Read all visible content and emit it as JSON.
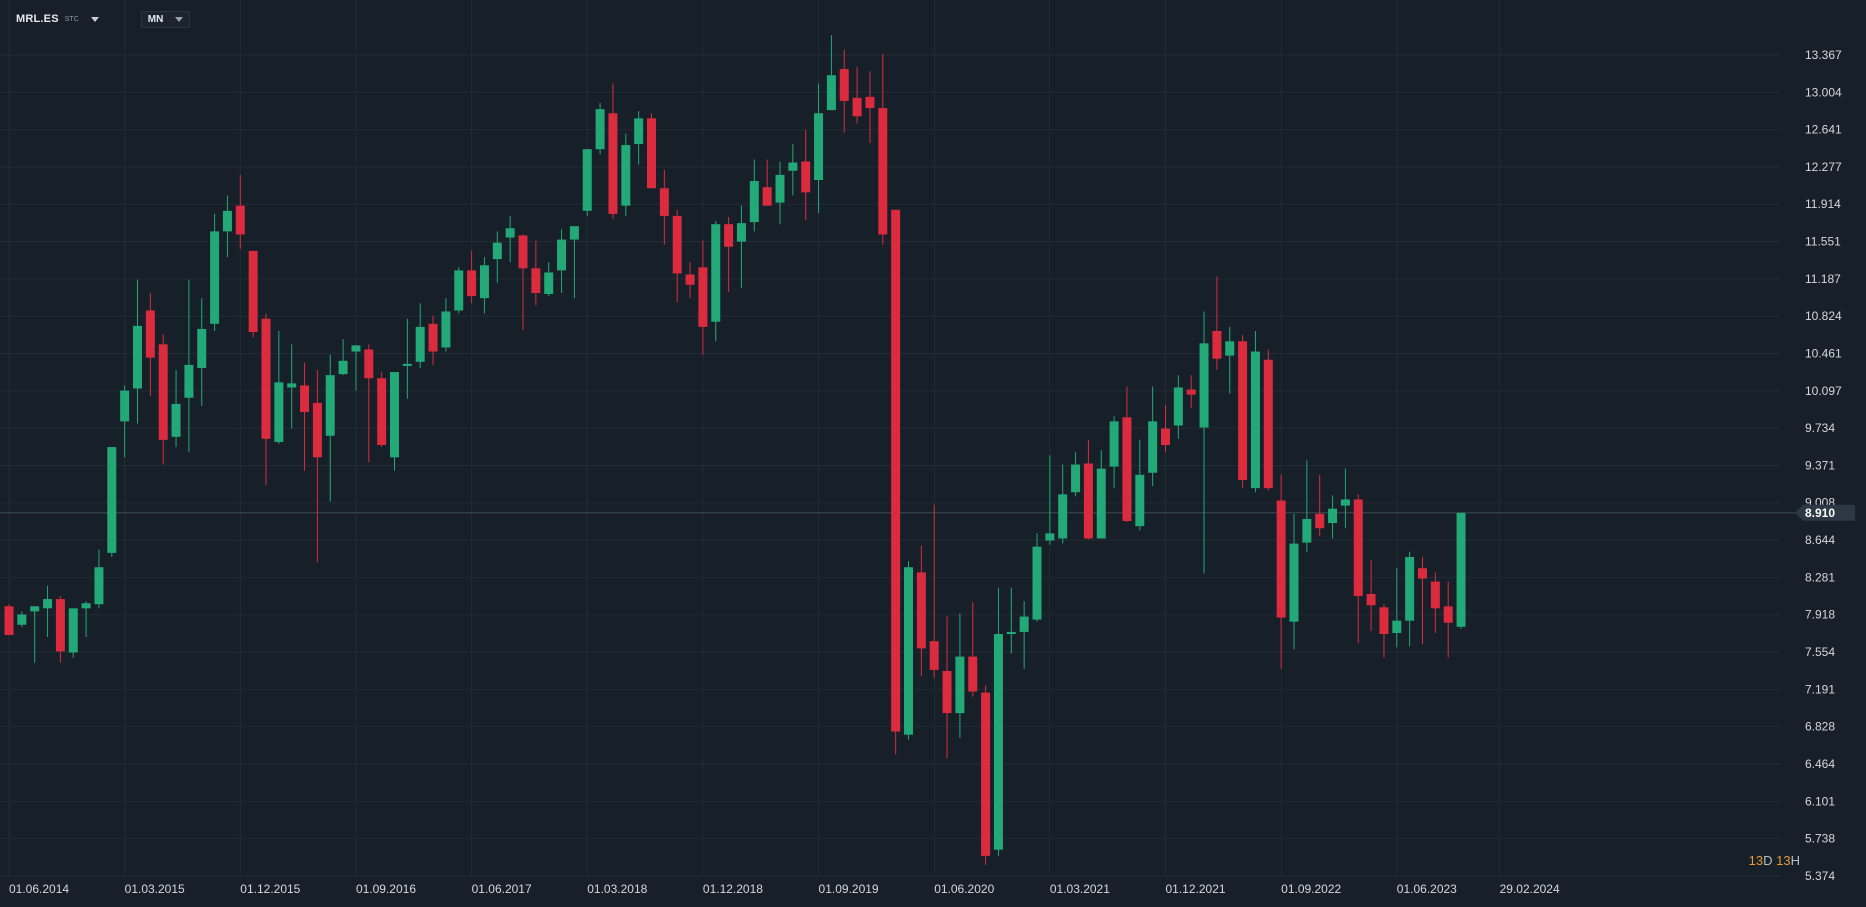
{
  "header": {
    "symbol": "MRL.ES",
    "symbol_suffix": "STC",
    "timeframe": "MN"
  },
  "countdown": {
    "days": "13",
    "d_label": "D",
    "hours": "13",
    "h_label": "H"
  },
  "colors": {
    "background": "#171f28",
    "grid": "#222c36",
    "up": "#23a878",
    "down": "#db2b3e",
    "axis_text": "#d4d8de",
    "price_line": "#3a4a52",
    "price_tag": "#2c3945"
  },
  "icons": [
    "caret-down-icon",
    "caret-down-icon"
  ],
  "chart_data": {
    "type": "candlestick",
    "title": "",
    "y_ticks": [
      "13.367",
      "13.004",
      "12.641",
      "12.277",
      "11.914",
      "11.551",
      "11.187",
      "10.824",
      "10.461",
      "10.097",
      "9.734",
      "9.371",
      "9.008",
      "8.644",
      "8.281",
      "7.918",
      "7.554",
      "7.191",
      "6.828",
      "6.464",
      "6.101",
      "5.738",
      "5.374"
    ],
    "x_ticks": [
      "01.06.2014",
      "01.03.2015",
      "01.12.2015",
      "01.09.2016",
      "01.06.2017",
      "01.03.2018",
      "01.12.2018",
      "01.09.2019",
      "01.06.2020",
      "01.03.2021",
      "01.12.2021",
      "01.09.2022",
      "01.06.2023",
      "29.02.2024"
    ],
    "ylim": [
      5.374,
      13.367
    ],
    "x_start": "2014-06",
    "current_price": "8.910",
    "grid": true,
    "candles": [
      {
        "d": "2014-06",
        "o": 8.0,
        "h": 8.02,
        "l": 7.72,
        "c": 7.72
      },
      {
        "d": "2014-07",
        "o": 7.82,
        "h": 7.95,
        "l": 7.8,
        "c": 7.92
      },
      {
        "d": "2014-08",
        "o": 7.95,
        "h": 8.0,
        "l": 7.45,
        "c": 8.0
      },
      {
        "d": "2014-09",
        "o": 7.98,
        "h": 8.2,
        "l": 7.7,
        "c": 8.07
      },
      {
        "d": "2014-10",
        "o": 8.07,
        "h": 8.1,
        "l": 7.45,
        "c": 7.56
      },
      {
        "d": "2014-11",
        "o": 7.55,
        "h": 7.98,
        "l": 7.5,
        "c": 7.98
      },
      {
        "d": "2014-12",
        "o": 7.98,
        "h": 8.05,
        "l": 7.7,
        "c": 8.03
      },
      {
        "d": "2015-01",
        "o": 8.02,
        "h": 8.55,
        "l": 7.98,
        "c": 8.38
      },
      {
        "d": "2015-02",
        "o": 8.52,
        "h": 9.55,
        "l": 8.48,
        "c": 9.55
      },
      {
        "d": "2015-03",
        "o": 9.8,
        "h": 10.15,
        "l": 9.45,
        "c": 10.1
      },
      {
        "d": "2015-04",
        "o": 10.12,
        "h": 11.18,
        "l": 9.78,
        "c": 10.73
      },
      {
        "d": "2015-05",
        "o": 10.88,
        "h": 11.05,
        "l": 10.05,
        "c": 10.42
      },
      {
        "d": "2015-06",
        "o": 10.55,
        "h": 10.65,
        "l": 9.38,
        "c": 9.62
      },
      {
        "d": "2015-07",
        "o": 9.65,
        "h": 10.3,
        "l": 9.55,
        "c": 9.97
      },
      {
        "d": "2015-08",
        "o": 10.03,
        "h": 11.18,
        "l": 9.5,
        "c": 10.35
      },
      {
        "d": "2015-09",
        "o": 10.32,
        "h": 11.0,
        "l": 9.95,
        "c": 10.7
      },
      {
        "d": "2015-10",
        "o": 10.75,
        "h": 11.82,
        "l": 10.68,
        "c": 11.65
      },
      {
        "d": "2015-11",
        "o": 11.65,
        "h": 12.0,
        "l": 11.4,
        "c": 11.85
      },
      {
        "d": "2015-12",
        "o": 11.9,
        "h": 12.2,
        "l": 11.48,
        "c": 11.62
      },
      {
        "d": "2016-01",
        "o": 11.46,
        "h": 11.46,
        "l": 10.62,
        "c": 10.67
      },
      {
        "d": "2016-02",
        "o": 10.8,
        "h": 10.85,
        "l": 9.18,
        "c": 9.63
      },
      {
        "d": "2016-03",
        "o": 9.6,
        "h": 10.68,
        "l": 9.58,
        "c": 10.18
      },
      {
        "d": "2016-04",
        "o": 10.13,
        "h": 10.55,
        "l": 9.73,
        "c": 10.17
      },
      {
        "d": "2016-05",
        "o": 10.15,
        "h": 10.37,
        "l": 9.32,
        "c": 9.89
      },
      {
        "d": "2016-06",
        "o": 9.98,
        "h": 10.3,
        "l": 8.43,
        "c": 9.45
      },
      {
        "d": "2016-07",
        "o": 9.66,
        "h": 10.45,
        "l": 9.02,
        "c": 10.25
      },
      {
        "d": "2016-08",
        "o": 10.26,
        "h": 10.6,
        "l": 10.25,
        "c": 10.39
      },
      {
        "d": "2016-09",
        "o": 10.48,
        "h": 10.54,
        "l": 10.1,
        "c": 10.54
      },
      {
        "d": "2016-10",
        "o": 10.5,
        "h": 10.55,
        "l": 9.4,
        "c": 10.22
      },
      {
        "d": "2016-11",
        "o": 10.22,
        "h": 10.28,
        "l": 9.55,
        "c": 9.57
      },
      {
        "d": "2016-12",
        "o": 9.45,
        "h": 10.27,
        "l": 9.32,
        "c": 10.28
      },
      {
        "d": "2017-01",
        "o": 10.34,
        "h": 10.8,
        "l": 10.02,
        "c": 10.36
      },
      {
        "d": "2017-02",
        "o": 10.38,
        "h": 10.95,
        "l": 10.32,
        "c": 10.72
      },
      {
        "d": "2017-03",
        "o": 10.75,
        "h": 10.83,
        "l": 10.35,
        "c": 10.48
      },
      {
        "d": "2017-04",
        "o": 10.52,
        "h": 11.0,
        "l": 10.48,
        "c": 10.87
      },
      {
        "d": "2017-05",
        "o": 10.88,
        "h": 11.3,
        "l": 10.85,
        "c": 11.27
      },
      {
        "d": "2017-06",
        "o": 11.27,
        "h": 11.46,
        "l": 10.95,
        "c": 11.02
      },
      {
        "d": "2017-07",
        "o": 11.0,
        "h": 11.4,
        "l": 10.85,
        "c": 11.32
      },
      {
        "d": "2017-08",
        "o": 11.38,
        "h": 11.65,
        "l": 11.15,
        "c": 11.54
      },
      {
        "d": "2017-09",
        "o": 11.59,
        "h": 11.8,
        "l": 11.35,
        "c": 11.68
      },
      {
        "d": "2017-10",
        "o": 11.61,
        "h": 11.62,
        "l": 10.69,
        "c": 11.29
      },
      {
        "d": "2017-11",
        "o": 11.29,
        "h": 11.56,
        "l": 10.93,
        "c": 11.05
      },
      {
        "d": "2017-12",
        "o": 11.04,
        "h": 11.35,
        "l": 11.02,
        "c": 11.25
      },
      {
        "d": "2018-01",
        "o": 11.27,
        "h": 11.67,
        "l": 11.05,
        "c": 11.57
      },
      {
        "d": "2018-02",
        "o": 11.57,
        "h": 11.7,
        "l": 11.0,
        "c": 11.7
      },
      {
        "d": "2018-03",
        "o": 11.85,
        "h": 12.45,
        "l": 11.8,
        "c": 12.45
      },
      {
        "d": "2018-04",
        "o": 12.45,
        "h": 12.9,
        "l": 12.4,
        "c": 12.84
      },
      {
        "d": "2018-05",
        "o": 12.8,
        "h": 13.09,
        "l": 11.77,
        "c": 11.82
      },
      {
        "d": "2018-06",
        "o": 11.9,
        "h": 12.6,
        "l": 11.8,
        "c": 12.49
      },
      {
        "d": "2018-07",
        "o": 12.5,
        "h": 12.82,
        "l": 12.3,
        "c": 12.75
      },
      {
        "d": "2018-08",
        "o": 12.75,
        "h": 12.8,
        "l": 12.1,
        "c": 12.07
      },
      {
        "d": "2018-09",
        "o": 12.07,
        "h": 12.25,
        "l": 11.52,
        "c": 11.8
      },
      {
        "d": "2018-10",
        "o": 11.8,
        "h": 11.86,
        "l": 10.96,
        "c": 11.24
      },
      {
        "d": "2018-11",
        "o": 11.23,
        "h": 11.35,
        "l": 11.0,
        "c": 11.13
      },
      {
        "d": "2018-12",
        "o": 11.3,
        "h": 11.56,
        "l": 10.45,
        "c": 10.72
      },
      {
        "d": "2019-01",
        "o": 10.77,
        "h": 11.75,
        "l": 10.58,
        "c": 11.72
      },
      {
        "d": "2019-02",
        "o": 11.72,
        "h": 11.79,
        "l": 11.06,
        "c": 11.5
      },
      {
        "d": "2019-03",
        "o": 11.55,
        "h": 11.9,
        "l": 11.1,
        "c": 11.73
      },
      {
        "d": "2019-04",
        "o": 11.74,
        "h": 12.35,
        "l": 11.65,
        "c": 12.14
      },
      {
        "d": "2019-05",
        "o": 12.08,
        "h": 12.35,
        "l": 11.9,
        "c": 11.9
      },
      {
        "d": "2019-06",
        "o": 11.93,
        "h": 12.33,
        "l": 11.72,
        "c": 12.2
      },
      {
        "d": "2019-07",
        "o": 12.24,
        "h": 12.5,
        "l": 12.0,
        "c": 12.32
      },
      {
        "d": "2019-08",
        "o": 12.33,
        "h": 12.64,
        "l": 11.76,
        "c": 12.03
      },
      {
        "d": "2019-09",
        "o": 12.15,
        "h": 13.09,
        "l": 11.83,
        "c": 12.8
      },
      {
        "d": "2019-10",
        "o": 12.83,
        "h": 13.56,
        "l": 12.83,
        "c": 13.17
      },
      {
        "d": "2019-11",
        "o": 13.23,
        "h": 13.42,
        "l": 12.61,
        "c": 12.92
      },
      {
        "d": "2019-12",
        "o": 12.95,
        "h": 13.25,
        "l": 12.7,
        "c": 12.77
      },
      {
        "d": "2020-01",
        "o": 12.96,
        "h": 13.21,
        "l": 12.51,
        "c": 12.85
      },
      {
        "d": "2020-02",
        "o": 12.85,
        "h": 13.38,
        "l": 11.52,
        "c": 11.62
      },
      {
        "d": "2020-03",
        "o": 11.86,
        "h": 11.86,
        "l": 6.56,
        "c": 6.78
      },
      {
        "d": "2020-04",
        "o": 6.75,
        "h": 8.44,
        "l": 6.7,
        "c": 8.38
      },
      {
        "d": "2020-05",
        "o": 8.33,
        "h": 8.59,
        "l": 7.32,
        "c": 7.59
      },
      {
        "d": "2020-06",
        "o": 7.66,
        "h": 8.99,
        "l": 7.3,
        "c": 7.38
      },
      {
        "d": "2020-07",
        "o": 7.37,
        "h": 7.9,
        "l": 6.52,
        "c": 6.96
      },
      {
        "d": "2020-08",
        "o": 6.96,
        "h": 7.93,
        "l": 6.72,
        "c": 7.51
      },
      {
        "d": "2020-09",
        "o": 7.51,
        "h": 8.04,
        "l": 7.12,
        "c": 7.17
      },
      {
        "d": "2020-10",
        "o": 7.16,
        "h": 7.23,
        "l": 5.48,
        "c": 5.57
      },
      {
        "d": "2020-11",
        "o": 5.63,
        "h": 8.18,
        "l": 5.57,
        "c": 7.73
      },
      {
        "d": "2020-12",
        "o": 7.73,
        "h": 8.18,
        "l": 7.54,
        "c": 7.75
      },
      {
        "d": "2021-01",
        "o": 7.75,
        "h": 8.05,
        "l": 7.39,
        "c": 7.9
      },
      {
        "d": "2021-02",
        "o": 7.87,
        "h": 8.71,
        "l": 7.85,
        "c": 8.58
      },
      {
        "d": "2021-03",
        "o": 8.64,
        "h": 9.47,
        "l": 8.6,
        "c": 8.71
      },
      {
        "d": "2021-04",
        "o": 8.66,
        "h": 9.38,
        "l": 8.61,
        "c": 9.09
      },
      {
        "d": "2021-05",
        "o": 9.11,
        "h": 9.5,
        "l": 9.07,
        "c": 9.38
      },
      {
        "d": "2021-06",
        "o": 9.39,
        "h": 9.62,
        "l": 8.65,
        "c": 8.66
      },
      {
        "d": "2021-07",
        "o": 8.66,
        "h": 9.52,
        "l": 8.66,
        "c": 9.34
      },
      {
        "d": "2021-08",
        "o": 9.36,
        "h": 9.85,
        "l": 9.15,
        "c": 9.8
      },
      {
        "d": "2021-09",
        "o": 9.84,
        "h": 10.14,
        "l": 8.82,
        "c": 8.83
      },
      {
        "d": "2021-10",
        "o": 8.78,
        "h": 9.62,
        "l": 8.74,
        "c": 9.28
      },
      {
        "d": "2021-11",
        "o": 9.3,
        "h": 10.14,
        "l": 9.17,
        "c": 9.8
      },
      {
        "d": "2021-12",
        "o": 9.73,
        "h": 9.96,
        "l": 9.5,
        "c": 9.57
      },
      {
        "d": "2022-01",
        "o": 9.76,
        "h": 10.25,
        "l": 9.63,
        "c": 10.13
      },
      {
        "d": "2022-02",
        "o": 10.11,
        "h": 10.25,
        "l": 9.93,
        "c": 10.06
      },
      {
        "d": "2022-03",
        "o": 9.74,
        "h": 10.87,
        "l": 8.32,
        "c": 10.56
      },
      {
        "d": "2022-04",
        "o": 10.68,
        "h": 11.21,
        "l": 10.3,
        "c": 10.41
      },
      {
        "d": "2022-05",
        "o": 10.44,
        "h": 10.72,
        "l": 10.07,
        "c": 10.58
      },
      {
        "d": "2022-06",
        "o": 10.58,
        "h": 10.64,
        "l": 9.15,
        "c": 9.23
      },
      {
        "d": "2022-07",
        "o": 9.15,
        "h": 10.68,
        "l": 9.11,
        "c": 10.48
      },
      {
        "d": "2022-08",
        "o": 10.4,
        "h": 10.5,
        "l": 9.13,
        "c": 9.15
      },
      {
        "d": "2022-09",
        "o": 9.03,
        "h": 9.28,
        "l": 7.39,
        "c": 7.89
      },
      {
        "d": "2022-10",
        "o": 7.85,
        "h": 8.9,
        "l": 7.58,
        "c": 8.61
      },
      {
        "d": "2022-11",
        "o": 8.62,
        "h": 9.42,
        "l": 8.53,
        "c": 8.85
      },
      {
        "d": "2022-12",
        "o": 8.9,
        "h": 9.28,
        "l": 8.68,
        "c": 8.76
      },
      {
        "d": "2023-01",
        "o": 8.81,
        "h": 9.08,
        "l": 8.66,
        "c": 8.95
      },
      {
        "d": "2023-02",
        "o": 8.98,
        "h": 9.34,
        "l": 8.76,
        "c": 9.04
      },
      {
        "d": "2023-03",
        "o": 9.04,
        "h": 9.09,
        "l": 7.64,
        "c": 8.1
      },
      {
        "d": "2023-04",
        "o": 8.12,
        "h": 8.45,
        "l": 7.76,
        "c": 8.01
      },
      {
        "d": "2023-05",
        "o": 7.99,
        "h": 8.02,
        "l": 7.5,
        "c": 7.73
      },
      {
        "d": "2023-06",
        "o": 7.74,
        "h": 8.37,
        "l": 7.6,
        "c": 7.86
      },
      {
        "d": "2023-07",
        "o": 7.86,
        "h": 8.53,
        "l": 7.61,
        "c": 8.48
      },
      {
        "d": "2023-08",
        "o": 8.37,
        "h": 8.48,
        "l": 7.63,
        "c": 8.27
      },
      {
        "d": "2023-09",
        "o": 8.24,
        "h": 8.33,
        "l": 7.74,
        "c": 7.98
      },
      {
        "d": "2023-10",
        "o": 8.0,
        "h": 8.24,
        "l": 7.5,
        "c": 7.84
      },
      {
        "d": "2023-11",
        "o": 7.8,
        "h": 8.91,
        "l": 7.78,
        "c": 8.91
      }
    ]
  }
}
